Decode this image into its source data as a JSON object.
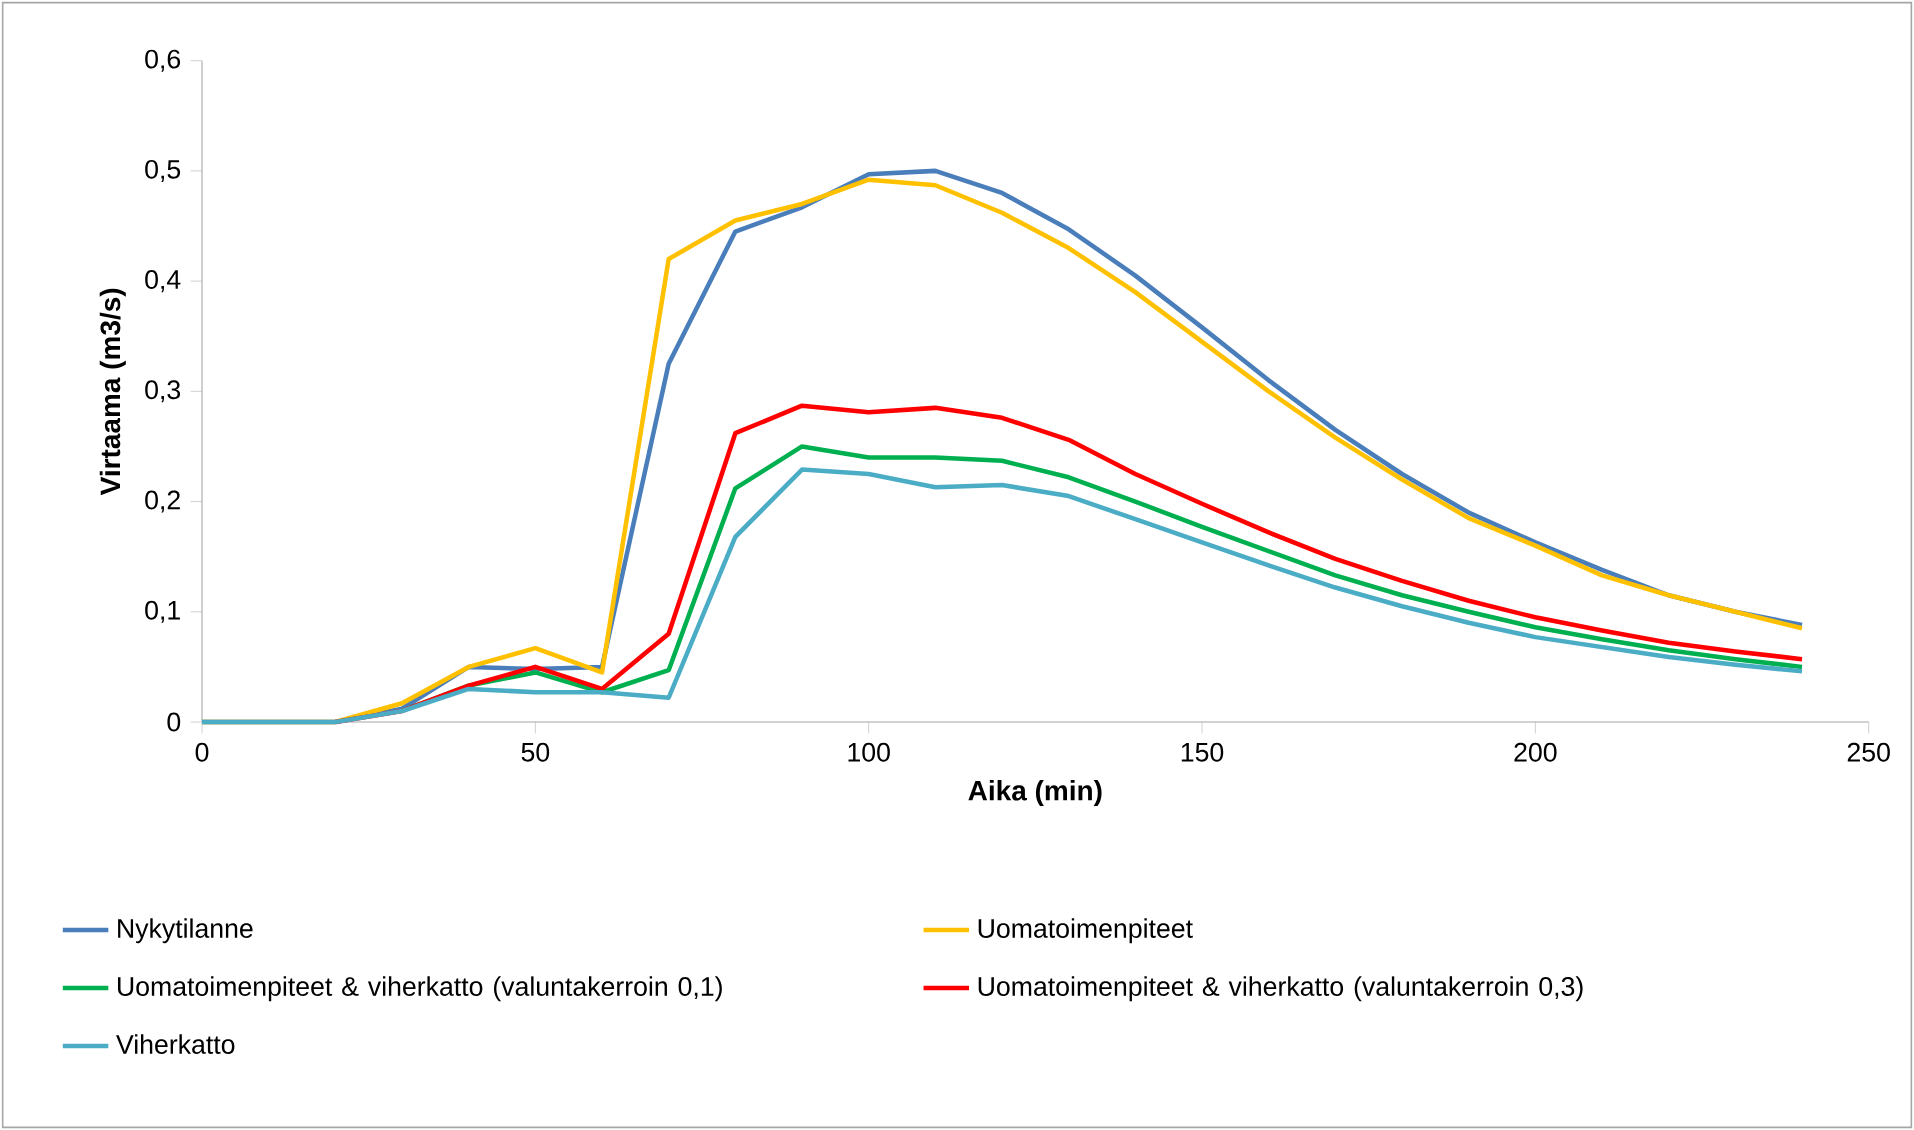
{
  "chart_data": {
    "type": "line",
    "xlabel": "Aika (min)",
    "ylabel": "Virtaama (m3/s)",
    "x": [
      0,
      10,
      20,
      30,
      40,
      50,
      60,
      70,
      80,
      90,
      100,
      110,
      120,
      130,
      140,
      150,
      160,
      170,
      180,
      190,
      200,
      210,
      220,
      230,
      240
    ],
    "xlim": [
      0,
      250
    ],
    "xticks": [
      0,
      50,
      100,
      150,
      200,
      250
    ],
    "ylim": [
      0,
      0.6
    ],
    "yticks": [
      0,
      {
        "value": 0.1,
        "label": "0,1"
      },
      {
        "value": 0.2,
        "label": "0,2"
      },
      {
        "value": 0.3,
        "label": "0,3"
      },
      {
        "value": 0.4,
        "label": "0,4"
      },
      {
        "value": 0.5,
        "label": "0,5"
      },
      {
        "value": 0.6,
        "label": "0,6"
      }
    ],
    "grid": false,
    "legend": "bottom",
    "marker": "none",
    "line_style": "solid",
    "series": [
      {
        "name": "Nykytilanne",
        "color": "#4a7ebb",
        "values": [
          0,
          0,
          0,
          0.012,
          0.05,
          0.048,
          0.05,
          0.325,
          0.445,
          0.467,
          0.497,
          0.5,
          0.48,
          0.447,
          0.405,
          0.358,
          0.31,
          0.265,
          0.225,
          0.19,
          0.163,
          0.138,
          0.115,
          0.1,
          0.088
        ]
      },
      {
        "name": "Uomatoimenpiteet",
        "color": "#ffc000",
        "values": [
          0,
          0,
          0,
          0.017,
          0.05,
          0.067,
          0.045,
          0.42,
          0.455,
          0.47,
          0.492,
          0.487,
          0.462,
          0.43,
          0.39,
          0.345,
          0.3,
          0.258,
          0.22,
          0.185,
          0.16,
          0.133,
          0.115,
          0.1,
          0.085
        ]
      },
      {
        "name": "Uomatoimenpiteet & viherkatto (valuntakerroin 0,1)",
        "color": "#00b050",
        "values": [
          null,
          null,
          null,
          0.01,
          0.033,
          0.045,
          0.027,
          0.047,
          0.212,
          0.25,
          0.24,
          0.24,
          0.237,
          0.222,
          0.2,
          0.177,
          0.155,
          0.133,
          0.115,
          0.1,
          0.086,
          0.075,
          0.065,
          0.057,
          0.05
        ]
      },
      {
        "name": "Uomatoimenpiteet & viherkatto (valuntakerroin 0,3)",
        "color": "#ff0000",
        "values": [
          null,
          null,
          0,
          0.01,
          0.033,
          0.05,
          0.03,
          0.08,
          0.262,
          0.287,
          0.281,
          0.285,
          0.276,
          0.256,
          0.225,
          0.198,
          0.172,
          0.148,
          0.128,
          0.11,
          0.095,
          0.083,
          0.072,
          0.064,
          0.057
        ]
      },
      {
        "name": "Viherkatto",
        "color": "#4bacc6",
        "values": [
          0,
          0,
          0,
          0.01,
          0.03,
          0.027,
          0.027,
          0.022,
          0.168,
          0.229,
          0.225,
          0.213,
          0.215,
          0.205,
          0.184,
          0.163,
          0.142,
          0.122,
          0.105,
          0.09,
          0.077,
          0.068,
          0.059,
          0.052,
          0.046
        ]
      }
    ]
  }
}
